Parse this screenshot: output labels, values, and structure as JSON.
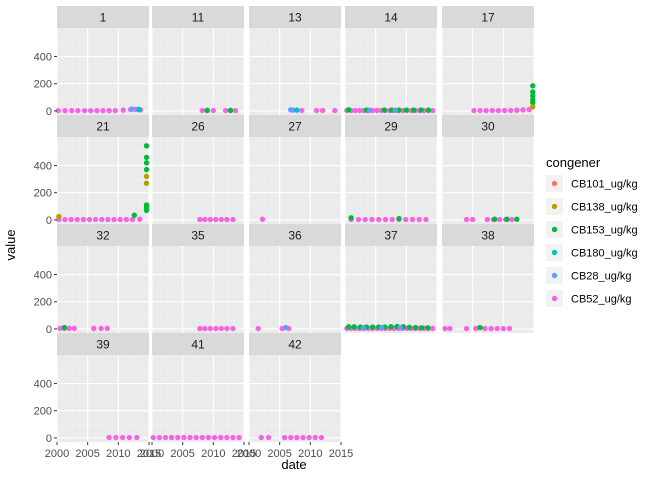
{
  "chart_data": {
    "type": "scatter",
    "facet_by": "site",
    "facets": [
      {
        "label": "1",
        "points": [
          {
            "series": "CB52_ug/kg",
            "x": [
              2000.2,
              2001.3,
              2002.4,
              2003.4,
              2004.5,
              2005.5,
              2006.5,
              2007.5,
              2008.5,
              2009.5,
              2010.8,
              2012.0,
              2012.8,
              2013.6
            ],
            "y": [
              2,
              2,
              2,
              2,
              2,
              2,
              2,
              2,
              2,
              2,
              6,
              10,
              12,
              8
            ]
          },
          {
            "series": "CB28_ug/kg",
            "x": [
              2012.2,
              2013.3
            ],
            "y": [
              14,
              12
            ]
          },
          {
            "series": "CB180_ug/kg",
            "x": [
              2013.4
            ],
            "y": [
              10
            ]
          }
        ]
      },
      {
        "label": "11",
        "points": [
          {
            "series": "CB52_ug/kg",
            "x": [
              2008.2,
              2009.0,
              2010.0,
              2012.0,
              2012.8,
              2013.6
            ],
            "y": [
              3,
              3,
              3,
              3,
              3,
              3
            ]
          },
          {
            "series": "CB153_ug/kg",
            "x": [
              2009.0,
              2012.8
            ],
            "y": [
              4,
              4
            ]
          }
        ]
      },
      {
        "label": "13",
        "points": [
          {
            "series": "CB28_ug/kg",
            "x": [
              2006.8,
              2007.2
            ],
            "y": [
              8,
              6
            ]
          },
          {
            "series": "CB180_ug/kg",
            "x": [
              2007.8
            ],
            "y": [
              6
            ]
          },
          {
            "series": "CB52_ug/kg",
            "x": [
              2008.6,
              2011.0,
              2012.0,
              2014.0
            ],
            "y": [
              3,
              3,
              3,
              3
            ]
          }
        ]
      },
      {
        "label": "14",
        "points": [
          {
            "series": "CB52_ug/kg",
            "x": [
              2000.3,
              2001.0,
              2001.7,
              2002.4,
              2003.1,
              2003.8,
              2004.5,
              2005.2,
              2005.9,
              2006.6,
              2007.3,
              2008.0,
              2008.7,
              2009.4,
              2010.1,
              2010.8,
              2011.5,
              2012.2,
              2012.9,
              2013.6,
              2014.3
            ],
            "y": [
              3,
              3,
              3,
              3,
              3,
              3,
              3,
              3,
              3,
              3,
              3,
              3,
              3,
              3,
              3,
              3,
              3,
              3,
              3,
              3,
              3
            ]
          },
          {
            "series": "CB153_ug/kg",
            "x": [
              2000.6,
              2003.5,
              2006.4,
              2007.6,
              2008.8,
              2010.0,
              2011.2,
              2012.4,
              2013.6
            ],
            "y": [
              8,
              6,
              6,
              6,
              6,
              6,
              6,
              6,
              6
            ]
          },
          {
            "series": "CB28_ug/kg",
            "x": [
              2004.0,
              2008.2
            ],
            "y": [
              5,
              5
            ]
          }
        ]
      },
      {
        "label": "17",
        "points": [
          {
            "series": "CB52_ug/kg",
            "x": [
              2005.2,
              2006.2,
              2007.2,
              2008.2,
              2009.2,
              2010.2,
              2011.2,
              2012.2,
              2013.2,
              2014.2
            ],
            "y": [
              3,
              3,
              3,
              3,
              3,
              3,
              3,
              5,
              8,
              10
            ]
          },
          {
            "series": "CB153_ug/kg",
            "x": [
              2014.8,
              2014.8,
              2014.8,
              2014.8,
              2014.8
            ],
            "y": [
              185,
              140,
              110,
              80,
              60
            ]
          },
          {
            "series": "CB138_ug/kg",
            "x": [
              2014.8
            ],
            "y": [
              30
            ]
          }
        ]
      },
      {
        "label": "21",
        "points": [
          {
            "series": "CB52_ug/kg",
            "x": [
              2000.3,
              2001.3,
              2002.3,
              2003.3,
              2004.3,
              2005.3,
              2006.3,
              2007.3,
              2008.3,
              2009.3,
              2010.3,
              2011.3,
              2012.3,
              2013.5
            ],
            "y": [
              3,
              3,
              3,
              3,
              3,
              3,
              3,
              3,
              3,
              3,
              3,
              3,
              3,
              5
            ]
          },
          {
            "series": "CB138_ug/kg",
            "x": [
              2000.3,
              2014.6,
              2014.6
            ],
            "y": [
              25,
              320,
              270
            ]
          },
          {
            "series": "CB153_ug/kg",
            "x": [
              2012.6,
              2014.6,
              2014.6,
              2014.6,
              2014.6,
              2014.6,
              2014.6,
              2014.6
            ],
            "y": [
              35,
              545,
              460,
              420,
              370,
              110,
              90,
              70
            ]
          }
        ]
      },
      {
        "label": "26",
        "points": [
          {
            "series": "CB52_ug/kg",
            "x": [
              2007.8,
              2008.6,
              2009.5,
              2010.4,
              2011.3,
              2012.2,
              2013.2
            ],
            "y": [
              3,
              3,
              3,
              3,
              3,
              3,
              3
            ]
          }
        ]
      },
      {
        "label": "27",
        "points": [
          {
            "series": "CB52_ug/kg",
            "x": [
              2002.2
            ],
            "y": [
              5
            ]
          }
        ]
      },
      {
        "label": "29",
        "points": [
          {
            "series": "CB52_ug/kg",
            "x": [
              2001.0,
              2002.2,
              2003.3,
              2004.4,
              2005.5,
              2006.6,
              2007.7,
              2008.8,
              2009.9,
              2011.0,
              2012.1,
              2013.2
            ],
            "y": [
              3,
              3,
              3,
              3,
              3,
              3,
              3,
              3,
              3,
              3,
              3,
              3
            ]
          },
          {
            "series": "CB153_ug/kg",
            "x": [
              2001.0,
              2008.8
            ],
            "y": [
              15,
              10
            ]
          }
        ]
      },
      {
        "label": "30",
        "points": [
          {
            "series": "CB52_ug/kg",
            "x": [
              2004.0,
              2005.0,
              2007.4,
              2008.4,
              2009.4,
              2010.4,
              2011.4
            ],
            "y": [
              3,
              3,
              3,
              3,
              3,
              3,
              3
            ]
          },
          {
            "series": "CB153_ug/kg",
            "x": [
              2008.6,
              2010.6,
              2012.2
            ],
            "y": [
              5,
              5,
              5
            ]
          }
        ]
      },
      {
        "label": "32",
        "points": [
          {
            "series": "CB52_ug/kg",
            "x": [
              2000.5,
              2001.2,
              2002.0,
              2002.8,
              2006.0,
              2007.2,
              2008.2
            ],
            "y": [
              4,
              4,
              4,
              4,
              4,
              4,
              4
            ]
          },
          {
            "series": "CB153_ug/kg",
            "x": [
              2001.2
            ],
            "y": [
              10
            ]
          }
        ]
      },
      {
        "label": "35",
        "points": [
          {
            "series": "CB52_ug/kg",
            "x": [
              2007.8,
              2008.6,
              2009.5,
              2010.4,
              2011.3,
              2012.2,
              2013.2
            ],
            "y": [
              3,
              3,
              3,
              3,
              3,
              3,
              3
            ]
          }
        ]
      },
      {
        "label": "36",
        "points": [
          {
            "series": "CB52_ug/kg",
            "x": [
              2001.5,
              2005.4,
              2006.5
            ],
            "y": [
              3,
              3,
              3
            ]
          },
          {
            "series": "CB28_ug/kg",
            "x": [
              2006.0
            ],
            "y": [
              10
            ]
          }
        ]
      },
      {
        "label": "37",
        "points": [
          {
            "series": "CB52_ug/kg",
            "x": [
              2000.3,
              2001.0,
              2001.7,
              2002.4,
              2003.1,
              2003.8,
              2004.5,
              2005.2,
              2005.9,
              2006.6,
              2007.3,
              2008.0,
              2008.7,
              2009.4,
              2010.1,
              2010.8,
              2011.5,
              2012.2,
              2012.9,
              2013.6,
              2014.3
            ],
            "y": [
              4,
              4,
              4,
              4,
              4,
              4,
              4,
              4,
              4,
              4,
              4,
              4,
              4,
              4,
              4,
              4,
              4,
              4,
              4,
              4,
              4
            ]
          },
          {
            "series": "CB153_ug/kg",
            "x": [
              2000.6,
              2001.5,
              2002.5,
              2003.5,
              2004.5,
              2005.5,
              2006.5,
              2007.5,
              2008.5,
              2009.5,
              2010.5,
              2011.5,
              2012.5,
              2013.5
            ],
            "y": [
              15,
              15,
              14,
              14,
              14,
              14,
              14,
              16,
              18,
              16,
              12,
              10,
              8,
              8
            ]
          },
          {
            "series": "CB28_ug/kg",
            "x": [
              2003.0,
              2006.0,
              2009.0
            ],
            "y": [
              10,
              10,
              10
            ]
          }
        ]
      },
      {
        "label": "38",
        "points": [
          {
            "series": "CB52_ug/kg",
            "x": [
              2000.5,
              2001.3,
              2004.0,
              2005.5,
              2007.0,
              2008.0,
              2009.0,
              2010.0,
              2011.0
            ],
            "y": [
              3,
              3,
              3,
              3,
              3,
              3,
              3,
              3,
              3
            ]
          },
          {
            "series": "CB153_ug/kg",
            "x": [
              2006.2
            ],
            "y": [
              10
            ]
          }
        ]
      },
      {
        "label": "39",
        "points": [
          {
            "series": "CB52_ug/kg",
            "x": [
              2008.5,
              2009.6,
              2010.7,
              2011.8,
              2013.0
            ],
            "y": [
              3,
              3,
              3,
              3,
              3
            ]
          }
        ]
      },
      {
        "label": "41",
        "points": [
          {
            "series": "CB52_ug/kg",
            "x": [
              2000.2,
              2001.2,
              2002.2,
              2003.2,
              2004.2,
              2005.2,
              2006.2,
              2007.2,
              2008.2,
              2009.2,
              2010.2,
              2011.2,
              2012.2,
              2013.2,
              2014.2
            ],
            "y": [
              3,
              3,
              3,
              3,
              3,
              3,
              3,
              3,
              3,
              3,
              3,
              3,
              3,
              3,
              3
            ]
          }
        ]
      },
      {
        "label": "42",
        "points": [
          {
            "series": "CB52_ug/kg",
            "x": [
              2002.0,
              2003.2,
              2005.8,
              2006.8,
              2007.8,
              2008.8,
              2009.8,
              2010.8,
              2011.8
            ],
            "y": [
              3,
              3,
              3,
              3,
              3,
              3,
              3,
              3,
              3
            ]
          }
        ]
      }
    ],
    "xlabel": "date",
    "ylabel": "value",
    "xlim": [
      2000,
      2015
    ],
    "ylim": [
      -30,
      610
    ],
    "x_ticks": [
      "2000",
      "2005",
      "2010",
      "2015"
    ],
    "y_ticks": [
      "0",
      "200",
      "400"
    ],
    "legend": {
      "title": "congener",
      "placement": "right",
      "items": [
        {
          "label": "CB101_ug/kg",
          "color": "#F8766D"
        },
        {
          "label": "CB138_ug/kg",
          "color": "#B79F00"
        },
        {
          "label": "CB153_ug/kg",
          "color": "#00BA38"
        },
        {
          "label": "CB180_ug/kg",
          "color": "#00BFC4"
        },
        {
          "label": "CB28_ug/kg",
          "color": "#619CFF"
        },
        {
          "label": "CB52_ug/kg",
          "color": "#F564E3"
        }
      ]
    },
    "colors": {
      "panel_background": "#EBEBEB",
      "strip_background": "#D9D9D9",
      "grid_major": "#FFFFFF",
      "grid_minor": "#F2F2F2"
    },
    "grid": true,
    "layout_columns": 5
  }
}
